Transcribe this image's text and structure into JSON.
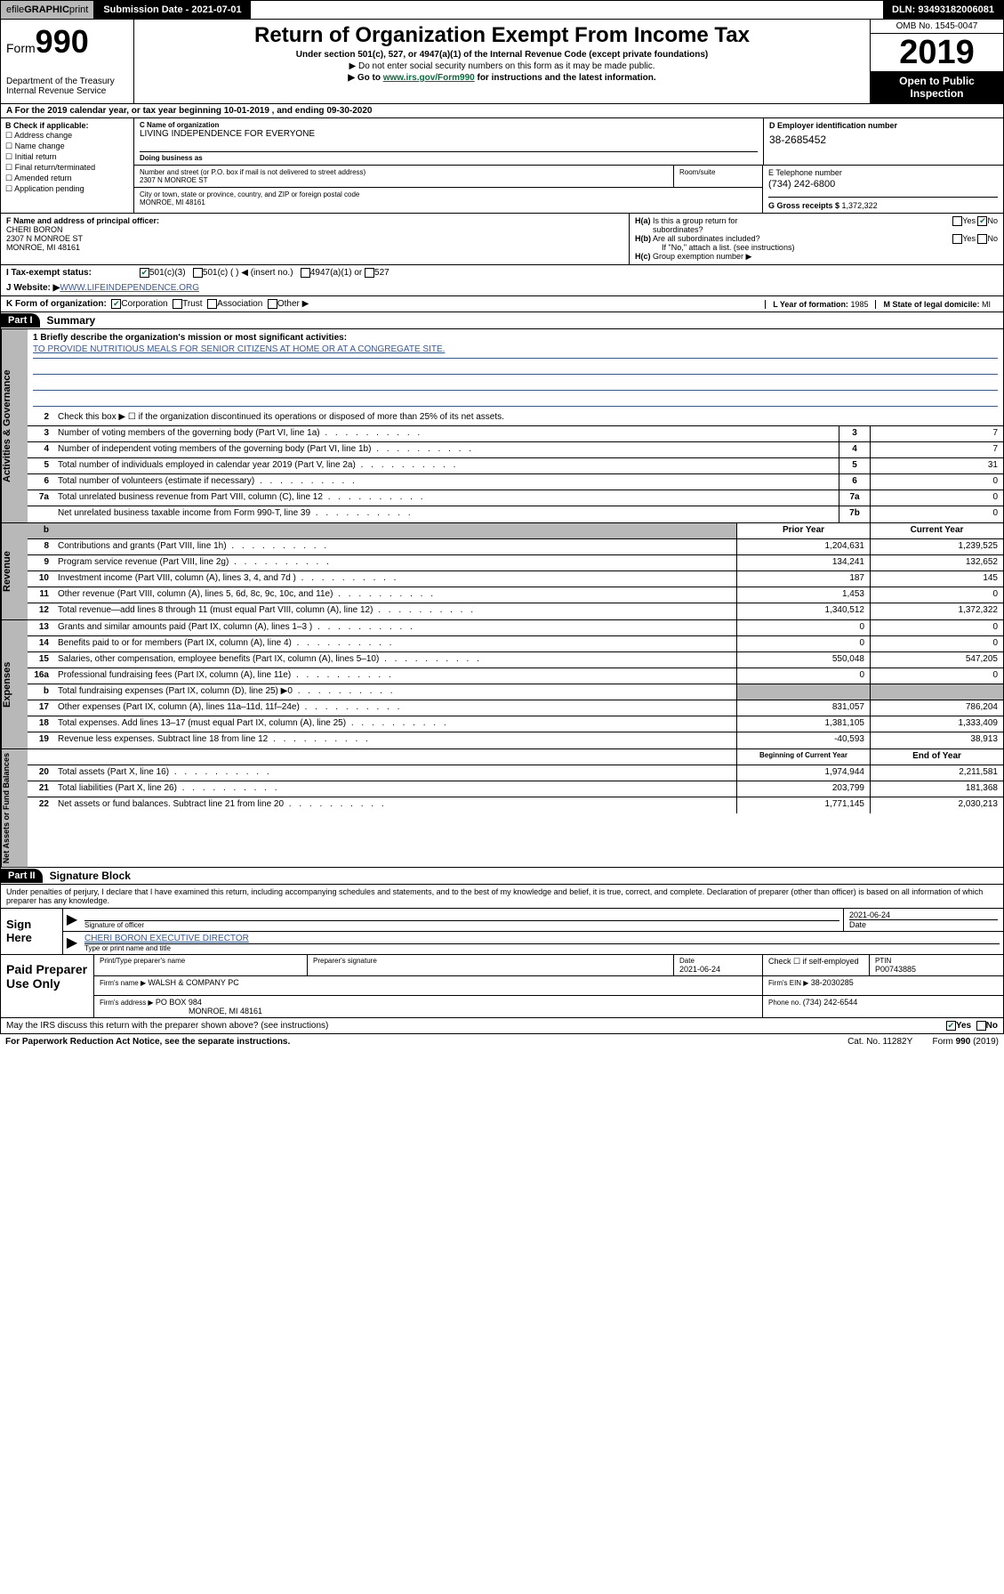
{
  "topbar": {
    "efile_prefix": "efile ",
    "efile_bold": "GRAPHIC ",
    "efile_suffix": "print",
    "submission_label": "Submission Date - 2021-07-01",
    "dln": "DLN: 93493182006081"
  },
  "header": {
    "form_prefix": "Form",
    "form_num": "990",
    "dept": "Department of the Treasury",
    "irs": "Internal Revenue Service",
    "title": "Return of Organization Exempt From Income Tax",
    "sub1": "Under section 501(c), 527, or 4947(a)(1) of the Internal Revenue Code (except private foundations)",
    "sub2": "▶ Do not enter social security numbers on this form as it may be made public.",
    "sub3_pre": "▶ Go to ",
    "sub3_link": "www.irs.gov/Form990",
    "sub3_post": " for instructions and the latest information.",
    "omb": "OMB No. 1545-0047",
    "year": "2019",
    "open1": "Open to Public",
    "open2": "Inspection"
  },
  "line_a": "A For the 2019 calendar year, or tax year beginning 10-01-2019   , and ending 09-30-2020",
  "box_b": {
    "label": "B Check if applicable:",
    "opts": [
      "Address change",
      "Name change",
      "Initial return",
      "Final return/terminated",
      "Amended return",
      "Application pending"
    ]
  },
  "box_c": {
    "name_label": "C Name of organization",
    "name": "LIVING INDEPENDENCE FOR EVERYONE",
    "dba_label": "Doing business as",
    "street_label": "Number and street (or P.O. box if mail is not delivered to street address)",
    "street": "2307 N MONROE ST",
    "room_label": "Room/suite",
    "city_label": "City or town, state or province, country, and ZIP or foreign postal code",
    "city": "MONROE, MI  48161"
  },
  "box_d": {
    "label": "D Employer identification number",
    "val": "38-2685452"
  },
  "box_e": {
    "label": "E Telephone number",
    "val": "(734) 242-6800"
  },
  "box_g": {
    "label": "G Gross receipts $ ",
    "val": "1,372,322"
  },
  "box_f": {
    "label": "F  Name and address of principal officer:",
    "name": "CHERI BORON",
    "addr1": "2307 N MONROE ST",
    "addr2": "MONROE, MI  48161"
  },
  "box_h": {
    "a_label": "H(a)  Is this a group return for subordinates?",
    "b_label": "H(b)  Are all subordinates included?",
    "b_note": "If \"No,\" attach a list. (see instructions)",
    "c_label": "H(c)  Group exemption number ▶",
    "yes": "Yes",
    "no": "No"
  },
  "row_i": {
    "label": "I   Tax-exempt status:",
    "o1": "501(c)(3)",
    "o2": "501(c) (   ) ◀ (insert no.)",
    "o3": "4947(a)(1) or",
    "o4": "527"
  },
  "row_j": {
    "label": "J   Website: ▶  ",
    "val": "WWW.LIFEINDEPENDENCE.ORG"
  },
  "row_k": {
    "label": "K Form of organization:",
    "o1": "Corporation",
    "o2": "Trust",
    "o3": "Association",
    "o4": "Other ▶",
    "l_label": "L Year of formation: ",
    "l_val": "1985",
    "m_label": "M State of legal domicile: ",
    "m_val": "MI"
  },
  "part1": {
    "tag": "Part I",
    "title": "Summary"
  },
  "governance": {
    "tab": "Activities & Governance",
    "l1_label": "1  Briefly describe the organization's mission or most significant activities:",
    "l1_text": "TO PROVIDE NUTRITIOUS MEALS FOR SENIOR CITIZENS AT HOME OR AT A CONGREGATE SITE.",
    "l2": "Check this box ▶ ☐  if the organization discontinued its operations or disposed of more than 25% of its net assets.",
    "l3": "Number of voting members of the governing body (Part VI, line 1a)",
    "l3v": "7",
    "l4": "Number of independent voting members of the governing body (Part VI, line 1b)",
    "l4v": "7",
    "l5": "Total number of individuals employed in calendar year 2019 (Part V, line 2a)",
    "l5v": "31",
    "l6": "Total number of volunteers (estimate if necessary)",
    "l6v": "0",
    "l7a": "Total unrelated business revenue from Part VIII, column (C), line 12",
    "l7av": "0",
    "l7b": "Net unrelated business taxable income from Form 990-T, line 39",
    "l7bv": "0"
  },
  "revenue": {
    "tab": "Revenue",
    "hdr_prior": "Prior Year",
    "hdr_current": "Current Year",
    "rows": [
      {
        "n": "8",
        "t": "Contributions and grants (Part VIII, line 1h)",
        "p": "1,204,631",
        "c": "1,239,525"
      },
      {
        "n": "9",
        "t": "Program service revenue (Part VIII, line 2g)",
        "p": "134,241",
        "c": "132,652"
      },
      {
        "n": "10",
        "t": "Investment income (Part VIII, column (A), lines 3, 4, and 7d )",
        "p": "187",
        "c": "145"
      },
      {
        "n": "11",
        "t": "Other revenue (Part VIII, column (A), lines 5, 6d, 8c, 9c, 10c, and 11e)",
        "p": "1,453",
        "c": "0"
      },
      {
        "n": "12",
        "t": "Total revenue—add lines 8 through 11 (must equal Part VIII, column (A), line 12)",
        "p": "1,340,512",
        "c": "1,372,322"
      }
    ]
  },
  "expenses": {
    "tab": "Expenses",
    "rows": [
      {
        "n": "13",
        "t": "Grants and similar amounts paid (Part IX, column (A), lines 1–3 )",
        "p": "0",
        "c": "0"
      },
      {
        "n": "14",
        "t": "Benefits paid to or for members (Part IX, column (A), line 4)",
        "p": "0",
        "c": "0"
      },
      {
        "n": "15",
        "t": "Salaries, other compensation, employee benefits (Part IX, column (A), lines 5–10)",
        "p": "550,048",
        "c": "547,205"
      },
      {
        "n": "16a",
        "t": "Professional fundraising fees (Part IX, column (A), line 11e)",
        "p": "0",
        "c": "0"
      },
      {
        "n": "b",
        "t": "Total fundraising expenses (Part IX, column (D), line 25) ▶0",
        "p": "",
        "c": "",
        "shaded": true
      },
      {
        "n": "17",
        "t": "Other expenses (Part IX, column (A), lines 11a–11d, 11f–24e)",
        "p": "831,057",
        "c": "786,204"
      },
      {
        "n": "18",
        "t": "Total expenses. Add lines 13–17 (must equal Part IX, column (A), line 25)",
        "p": "1,381,105",
        "c": "1,333,409"
      },
      {
        "n": "19",
        "t": "Revenue less expenses. Subtract line 18 from line 12",
        "p": "-40,593",
        "c": "38,913"
      }
    ]
  },
  "netassets": {
    "tab": "Net Assets or Fund Balances",
    "hdr_begin": "Beginning of Current Year",
    "hdr_end": "End of Year",
    "rows": [
      {
        "n": "20",
        "t": "Total assets (Part X, line 16)",
        "p": "1,974,944",
        "c": "2,211,581"
      },
      {
        "n": "21",
        "t": "Total liabilities (Part X, line 26)",
        "p": "203,799",
        "c": "181,368"
      },
      {
        "n": "22",
        "t": "Net assets or fund balances. Subtract line 21 from line 20",
        "p": "1,771,145",
        "c": "2,030,213"
      }
    ]
  },
  "part2": {
    "tag": "Part II",
    "title": "Signature Block"
  },
  "perjury": "Under penalties of perjury, I declare that I have examined this return, including accompanying schedules and statements, and to the best of my knowledge and belief, it is true, correct, and complete. Declaration of preparer (other than officer) is based on all information of which preparer has any knowledge.",
  "sign": {
    "here": "Sign Here",
    "sig_label": "Signature of officer",
    "date": "2021-06-24",
    "date_label": "Date",
    "name": "CHERI BORON  EXECUTIVE DIRECTOR",
    "name_label": "Type or print name and title"
  },
  "paid": {
    "label": "Paid Preparer Use Only",
    "print_label": "Print/Type preparer's name",
    "sig_label": "Preparer's signature",
    "date_label": "Date",
    "date": "2021-06-24",
    "check_label": "Check ☐ if self-employed",
    "ptin_label": "PTIN",
    "ptin": "P00743885",
    "firm_name_label": "Firm's name      ▶ ",
    "firm_name": "WALSH & COMPANY PC",
    "firm_ein_label": "Firm's EIN ▶ ",
    "firm_ein": "38-2030285",
    "firm_addr_label": "Firm's address ▶ ",
    "firm_addr1": "PO BOX 984",
    "firm_addr2": "MONROE, MI  48161",
    "phone_label": "Phone no. ",
    "phone": "(734) 242-6544"
  },
  "discuss": {
    "text": "May the IRS discuss this return with the preparer shown above? (see instructions)",
    "yes": "Yes",
    "no": "No"
  },
  "footer": {
    "left": "For Paperwork Reduction Act Notice, see the separate instructions.",
    "mid": "Cat. No. 11282Y",
    "right": "Form 990 (2019)"
  }
}
